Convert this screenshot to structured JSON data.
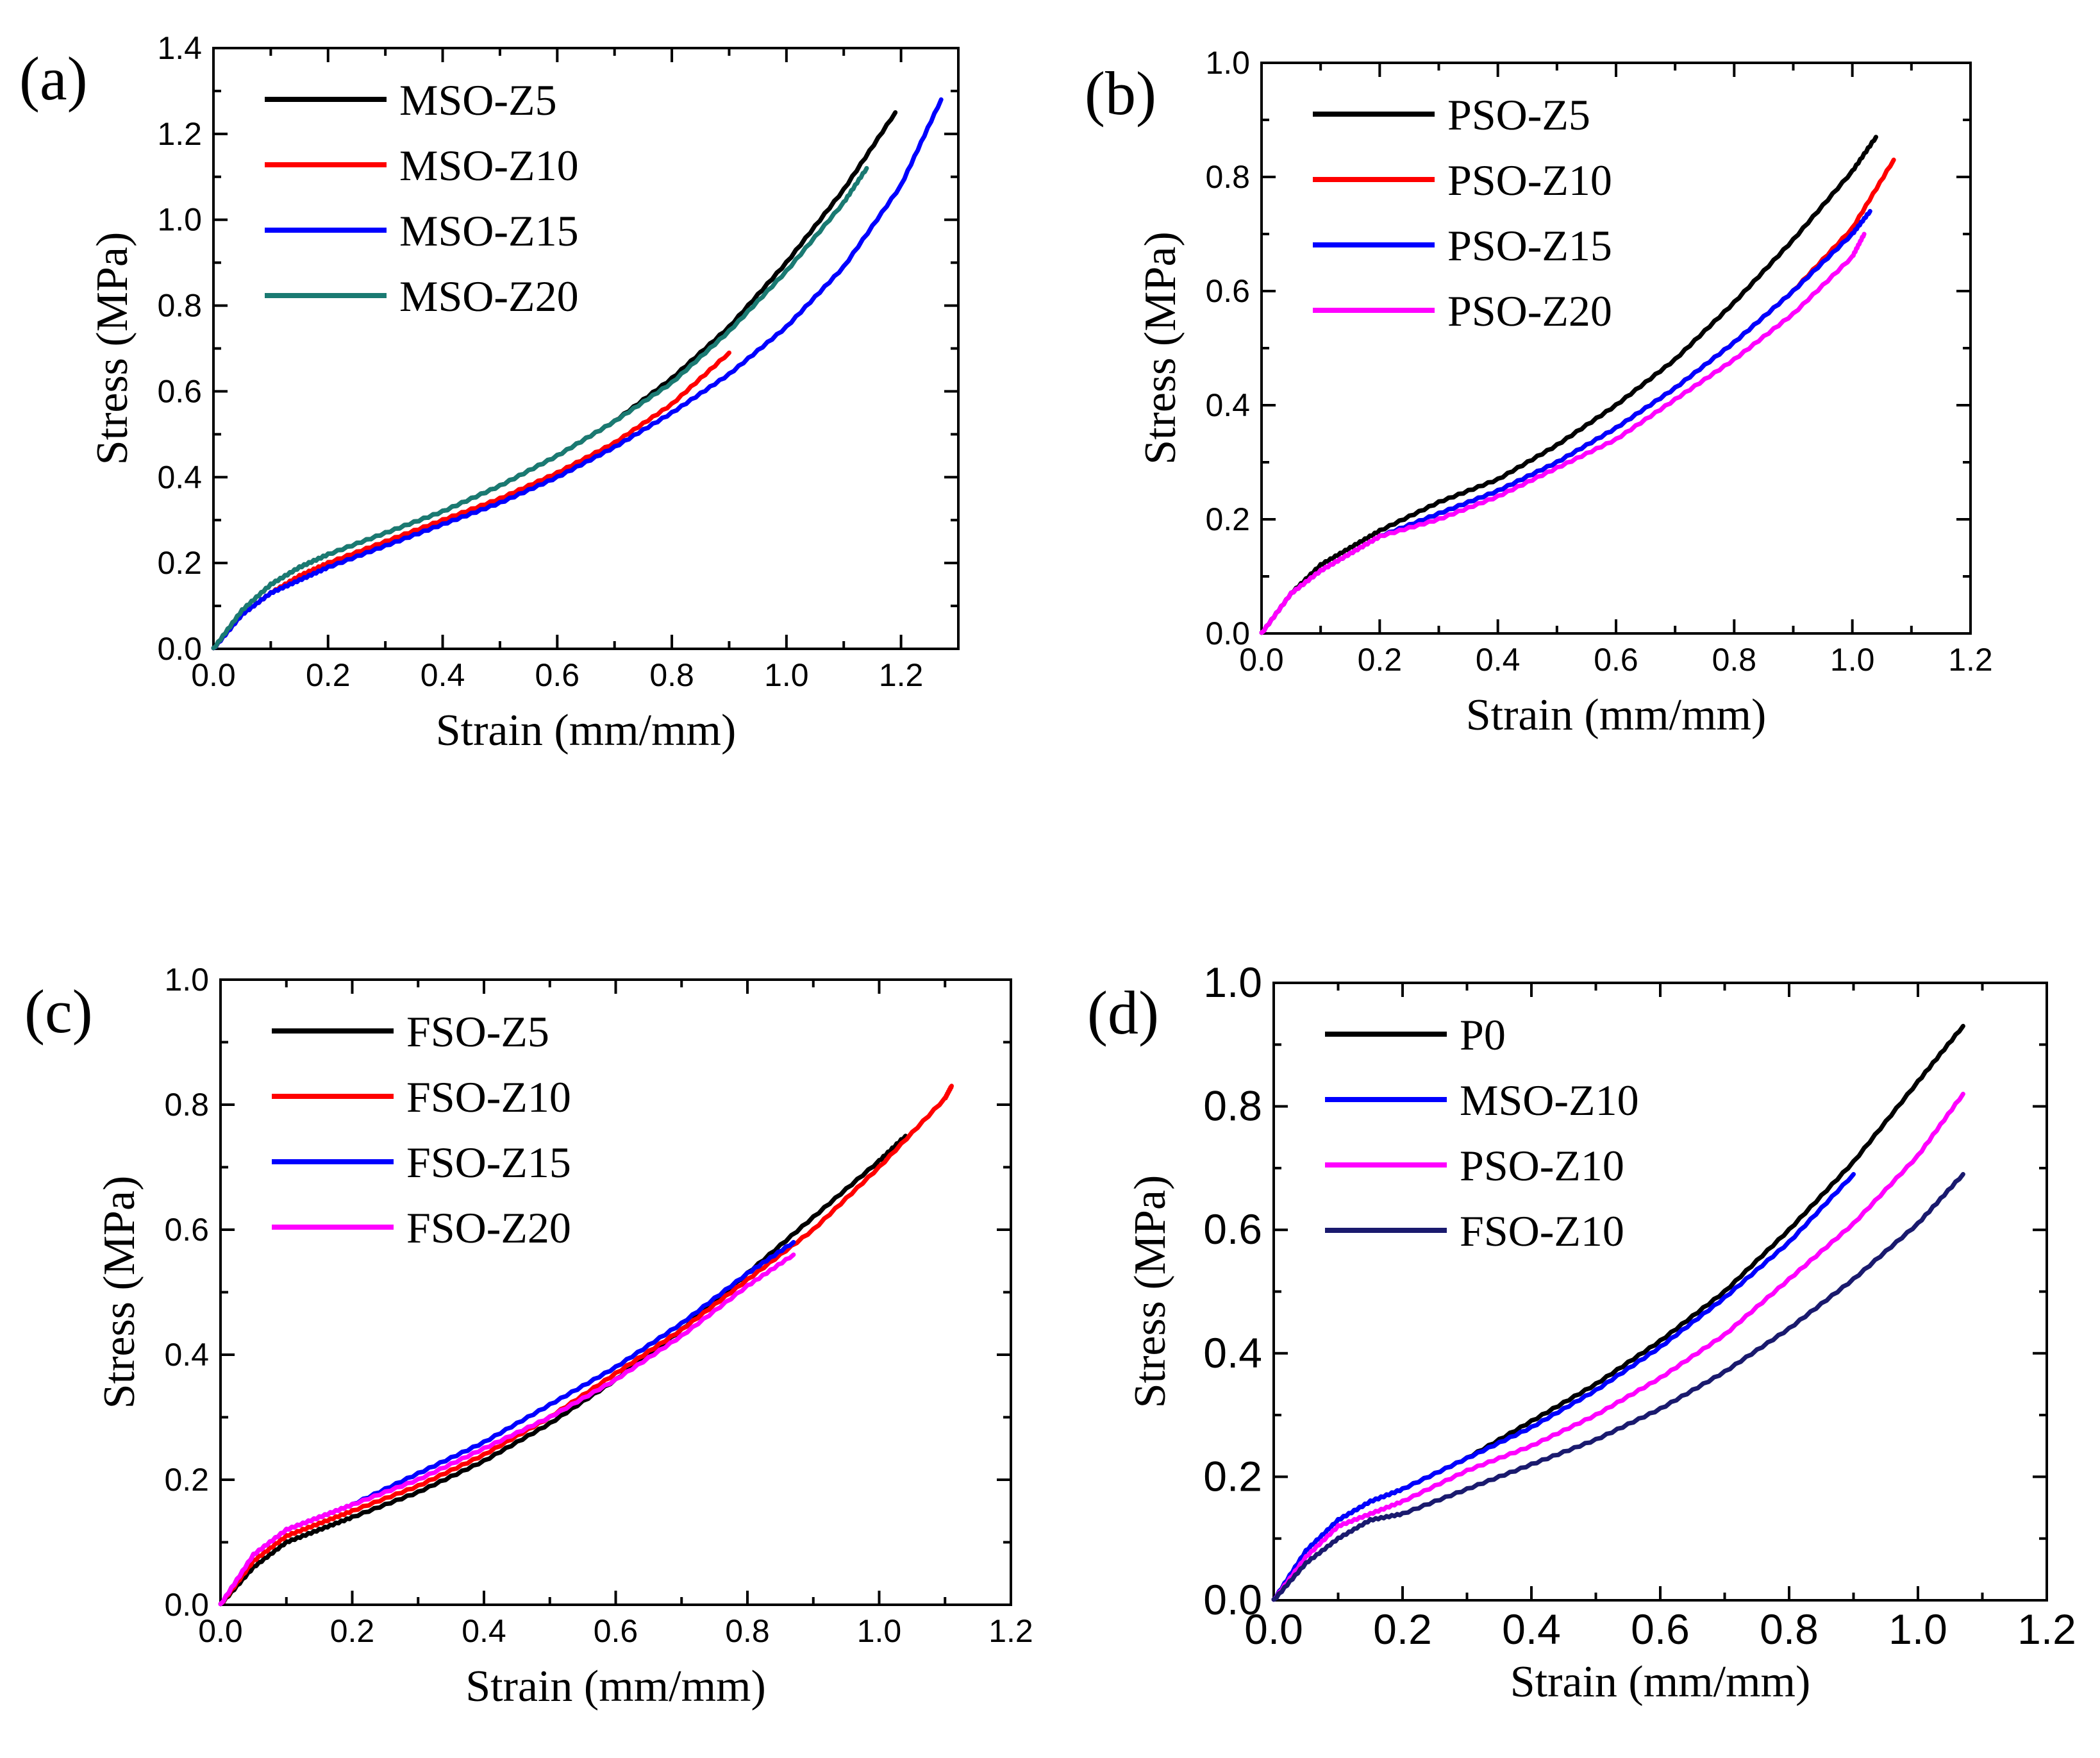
{
  "chart_data": [
    {
      "type": "line",
      "panel_label": "(a)",
      "xlabel": "Strain (mm/mm)",
      "ylabel": "Stress (MPa)",
      "xlim": [
        0,
        1.3
      ],
      "ylim": [
        0,
        1.4
      ],
      "x_ticks": [
        "0.0",
        "0.2",
        "0.4",
        "0.6",
        "0.8",
        "1.0",
        "1.2"
      ],
      "x_tick_values": [
        0,
        0.2,
        0.4,
        0.6,
        0.8,
        1.0,
        1.2
      ],
      "y_ticks": [
        "0.0",
        "0.2",
        "0.4",
        "0.6",
        "0.8",
        "1.0",
        "1.2",
        "1.4"
      ],
      "y_tick_values": [
        0,
        0.2,
        0.4,
        0.6,
        0.8,
        1.0,
        1.2,
        1.4
      ],
      "legend_position": "top-left",
      "series": [
        {
          "name": "MSO-Z5",
          "color": "#000000",
          "x": [
            0,
            0.05,
            0.1,
            0.15,
            0.2,
            0.3,
            0.4,
            0.5,
            0.6,
            0.7,
            0.8,
            0.9,
            1.0,
            1.1,
            1.19
          ],
          "y": [
            0,
            0.09,
            0.15,
            0.19,
            0.22,
            0.27,
            0.32,
            0.38,
            0.45,
            0.53,
            0.63,
            0.75,
            0.9,
            1.07,
            1.25
          ]
        },
        {
          "name": "MSO-Z10",
          "color": "#ff0000",
          "x": [
            0,
            0.05,
            0.1,
            0.15,
            0.2,
            0.3,
            0.4,
            0.5,
            0.6,
            0.7,
            0.8,
            0.9
          ],
          "y": [
            0,
            0.08,
            0.13,
            0.17,
            0.2,
            0.25,
            0.3,
            0.35,
            0.41,
            0.48,
            0.57,
            0.69
          ]
        },
        {
          "name": "MSO-Z15",
          "color": "#0000ff",
          "x": [
            0,
            0.05,
            0.1,
            0.15,
            0.2,
            0.3,
            0.4,
            0.5,
            0.6,
            0.7,
            0.8,
            0.9,
            1.0,
            1.1,
            1.2,
            1.27
          ],
          "y": [
            0,
            0.08,
            0.13,
            0.16,
            0.19,
            0.24,
            0.29,
            0.34,
            0.4,
            0.47,
            0.55,
            0.64,
            0.75,
            0.89,
            1.08,
            1.28
          ]
        },
        {
          "name": "MSO-Z20",
          "color": "#1a7a72",
          "x": [
            0,
            0.05,
            0.1,
            0.15,
            0.2,
            0.3,
            0.4,
            0.5,
            0.6,
            0.7,
            0.8,
            0.9,
            1.0,
            1.1,
            1.14
          ],
          "y": [
            0,
            0.09,
            0.15,
            0.19,
            0.22,
            0.27,
            0.32,
            0.38,
            0.45,
            0.53,
            0.62,
            0.74,
            0.88,
            1.04,
            1.12
          ]
        }
      ]
    },
    {
      "type": "line",
      "panel_label": "(b)",
      "xlabel": "Strain (mm/mm)",
      "ylabel": "Stress (MPa)",
      "xlim": [
        0,
        1.2
      ],
      "ylim": [
        0,
        1.0
      ],
      "x_ticks": [
        "0.0",
        "0.2",
        "0.4",
        "0.6",
        "0.8",
        "1.0",
        "1.2"
      ],
      "x_tick_values": [
        0,
        0.2,
        0.4,
        0.6,
        0.8,
        1.0,
        1.2
      ],
      "y_ticks": [
        "0.0",
        "0.2",
        "0.4",
        "0.6",
        "0.8",
        "1.0"
      ],
      "y_tick_values": [
        0,
        0.2,
        0.4,
        0.6,
        0.8,
        1.0
      ],
      "legend_position": "top-left",
      "series": [
        {
          "name": "PSO-Z5",
          "color": "#000000",
          "x": [
            0,
            0.05,
            0.1,
            0.15,
            0.2,
            0.3,
            0.4,
            0.5,
            0.6,
            0.7,
            0.8,
            0.9,
            1.0,
            1.04
          ],
          "y": [
            0,
            0.07,
            0.12,
            0.15,
            0.18,
            0.23,
            0.27,
            0.33,
            0.4,
            0.48,
            0.58,
            0.69,
            0.81,
            0.87
          ]
        },
        {
          "name": "PSO-Z10",
          "color": "#ff0000",
          "x": [
            0,
            0.05,
            0.1,
            0.15,
            0.2,
            0.3,
            0.4,
            0.5,
            0.6,
            0.7,
            0.8,
            0.9,
            1.0,
            1.07
          ],
          "y": [
            0,
            0.07,
            0.11,
            0.14,
            0.17,
            0.21,
            0.25,
            0.3,
            0.36,
            0.43,
            0.51,
            0.6,
            0.71,
            0.83
          ]
        },
        {
          "name": "PSO-Z15",
          "color": "#0000ff",
          "x": [
            0,
            0.05,
            0.1,
            0.15,
            0.2,
            0.3,
            0.4,
            0.5,
            0.6,
            0.7,
            0.8,
            0.9,
            1.0,
            1.03
          ],
          "y": [
            0,
            0.07,
            0.11,
            0.14,
            0.17,
            0.21,
            0.25,
            0.3,
            0.36,
            0.43,
            0.51,
            0.6,
            0.7,
            0.74
          ]
        },
        {
          "name": "PSO-Z20",
          "color": "#ff00ff",
          "x": [
            0,
            0.05,
            0.1,
            0.15,
            0.2,
            0.3,
            0.4,
            0.5,
            0.6,
            0.7,
            0.8,
            0.9,
            1.0,
            1.02
          ],
          "y": [
            0,
            0.07,
            0.11,
            0.14,
            0.17,
            0.2,
            0.24,
            0.29,
            0.34,
            0.41,
            0.48,
            0.56,
            0.66,
            0.7
          ]
        }
      ]
    },
    {
      "type": "line",
      "panel_label": "(c)",
      "xlabel": "Strain (mm/mm)",
      "ylabel": "Stress (MPa)",
      "xlim": [
        0,
        1.2
      ],
      "ylim": [
        0,
        1.0
      ],
      "x_ticks": [
        "0.0",
        "0.2",
        "0.4",
        "0.6",
        "0.8",
        "1.0",
        "1.2"
      ],
      "x_tick_values": [
        0,
        0.2,
        0.4,
        0.6,
        0.8,
        1.0,
        1.2
      ],
      "y_ticks": [
        "0.0",
        "0.2",
        "0.4",
        "0.6",
        "0.8",
        "1.0"
      ],
      "y_tick_values": [
        0,
        0.2,
        0.4,
        0.6,
        0.8,
        1.0
      ],
      "legend_position": "top-left",
      "series": [
        {
          "name": "FSO-Z5",
          "color": "#000000",
          "x": [
            0,
            0.05,
            0.1,
            0.15,
            0.2,
            0.3,
            0.4,
            0.5,
            0.6,
            0.7,
            0.8,
            0.9,
            1.0,
            1.04
          ],
          "y": [
            0,
            0.06,
            0.1,
            0.12,
            0.14,
            0.18,
            0.23,
            0.29,
            0.36,
            0.44,
            0.53,
            0.62,
            0.71,
            0.75
          ]
        },
        {
          "name": "FSO-Z10",
          "color": "#ff0000",
          "x": [
            0,
            0.05,
            0.1,
            0.15,
            0.2,
            0.3,
            0.4,
            0.5,
            0.6,
            0.7,
            0.8,
            0.9,
            1.0,
            1.1,
            1.11
          ],
          "y": [
            0,
            0.07,
            0.11,
            0.13,
            0.15,
            0.19,
            0.24,
            0.3,
            0.37,
            0.44,
            0.52,
            0.6,
            0.7,
            0.81,
            0.83
          ]
        },
        {
          "name": "FSO-Z15",
          "color": "#0000ff",
          "x": [
            0,
            0.05,
            0.1,
            0.15,
            0.2,
            0.3,
            0.4,
            0.5,
            0.6,
            0.7,
            0.8,
            0.87
          ],
          "y": [
            0,
            0.08,
            0.12,
            0.14,
            0.16,
            0.21,
            0.26,
            0.32,
            0.38,
            0.45,
            0.53,
            0.58
          ]
        },
        {
          "name": "FSO-Z20",
          "color": "#ff00ff",
          "x": [
            0,
            0.05,
            0.1,
            0.15,
            0.2,
            0.3,
            0.4,
            0.5,
            0.6,
            0.7,
            0.8,
            0.87
          ],
          "y": [
            0,
            0.08,
            0.12,
            0.14,
            0.16,
            0.2,
            0.25,
            0.3,
            0.36,
            0.43,
            0.51,
            0.56
          ]
        }
      ]
    },
    {
      "type": "line",
      "panel_label": "(d)",
      "xlabel": "Strain (mm/mm)",
      "ylabel": "Stress (MPa)",
      "xlim": [
        0,
        1.2
      ],
      "ylim": [
        0,
        1.0
      ],
      "x_ticks": [
        "0.0",
        "0.2",
        "0.4",
        "0.6",
        "0.8",
        "1.0",
        "1.2"
      ],
      "x_tick_values": [
        0,
        0.2,
        0.4,
        0.6,
        0.8,
        1.0,
        1.2
      ],
      "y_ticks": [
        "0.0",
        "0.2",
        "0.4",
        "0.6",
        "0.8",
        "1.0"
      ],
      "y_tick_values": [
        0,
        0.2,
        0.4,
        0.6,
        0.8,
        1.0
      ],
      "legend_position": "top-left",
      "series": [
        {
          "name": "P0",
          "color": "#000000",
          "x": [
            0,
            0.05,
            0.1,
            0.15,
            0.2,
            0.3,
            0.4,
            0.5,
            0.6,
            0.7,
            0.8,
            0.9,
            1.0,
            1.07
          ],
          "y": [
            0,
            0.08,
            0.13,
            0.16,
            0.18,
            0.23,
            0.29,
            0.35,
            0.42,
            0.5,
            0.6,
            0.71,
            0.84,
            0.93
          ]
        },
        {
          "name": "MSO-Z10",
          "color": "#0000ff",
          "x": [
            0,
            0.05,
            0.1,
            0.15,
            0.2,
            0.3,
            0.4,
            0.5,
            0.6,
            0.7,
            0.8,
            0.9
          ],
          "y": [
            0,
            0.08,
            0.13,
            0.16,
            0.18,
            0.23,
            0.28,
            0.34,
            0.41,
            0.49,
            0.58,
            0.69
          ]
        },
        {
          "name": "PSO-Z10",
          "color": "#ff00ff",
          "x": [
            0,
            0.05,
            0.1,
            0.15,
            0.2,
            0.3,
            0.4,
            0.5,
            0.6,
            0.7,
            0.8,
            0.9,
            1.0,
            1.07
          ],
          "y": [
            0,
            0.07,
            0.12,
            0.14,
            0.16,
            0.21,
            0.25,
            0.3,
            0.36,
            0.43,
            0.52,
            0.61,
            0.72,
            0.82
          ]
        },
        {
          "name": "FSO-Z10",
          "color": "#1a1a6e",
          "x": [
            0,
            0.05,
            0.1,
            0.15,
            0.2,
            0.3,
            0.4,
            0.5,
            0.6,
            0.7,
            0.8,
            0.9,
            1.0,
            1.07
          ],
          "y": [
            0,
            0.06,
            0.1,
            0.13,
            0.14,
            0.18,
            0.22,
            0.26,
            0.31,
            0.37,
            0.44,
            0.52,
            0.61,
            0.69
          ]
        }
      ]
    }
  ]
}
